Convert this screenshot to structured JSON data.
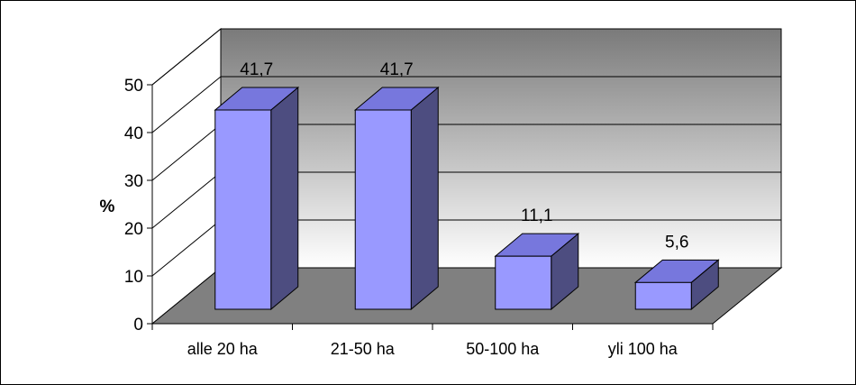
{
  "chart_data": {
    "type": "bar",
    "style": "3d-column",
    "categories": [
      "alle 20 ha",
      "21-50 ha",
      "50-100 ha",
      "yli 100 ha"
    ],
    "values": [
      41.7,
      41.7,
      11.1,
      5.6
    ],
    "data_labels": [
      "41,7",
      "41,7",
      "11,1",
      "5,6"
    ],
    "title": "",
    "xlabel": "",
    "ylabel": "%",
    "ylim": [
      0,
      50
    ],
    "yticks": [
      0,
      10,
      20,
      30,
      40,
      50
    ],
    "ytick_labels": [
      "0",
      "10",
      "20",
      "30",
      "40",
      "50"
    ],
    "grid": true,
    "legend": "none",
    "colors": {
      "bar_front": "#9999ff",
      "bar_top": "#7777dd",
      "bar_side": "#4d4d80",
      "wall_top": "#7a7a7a",
      "wall_bottom": "#ffffff",
      "floor": "#808080",
      "outline": "#000000"
    }
  }
}
